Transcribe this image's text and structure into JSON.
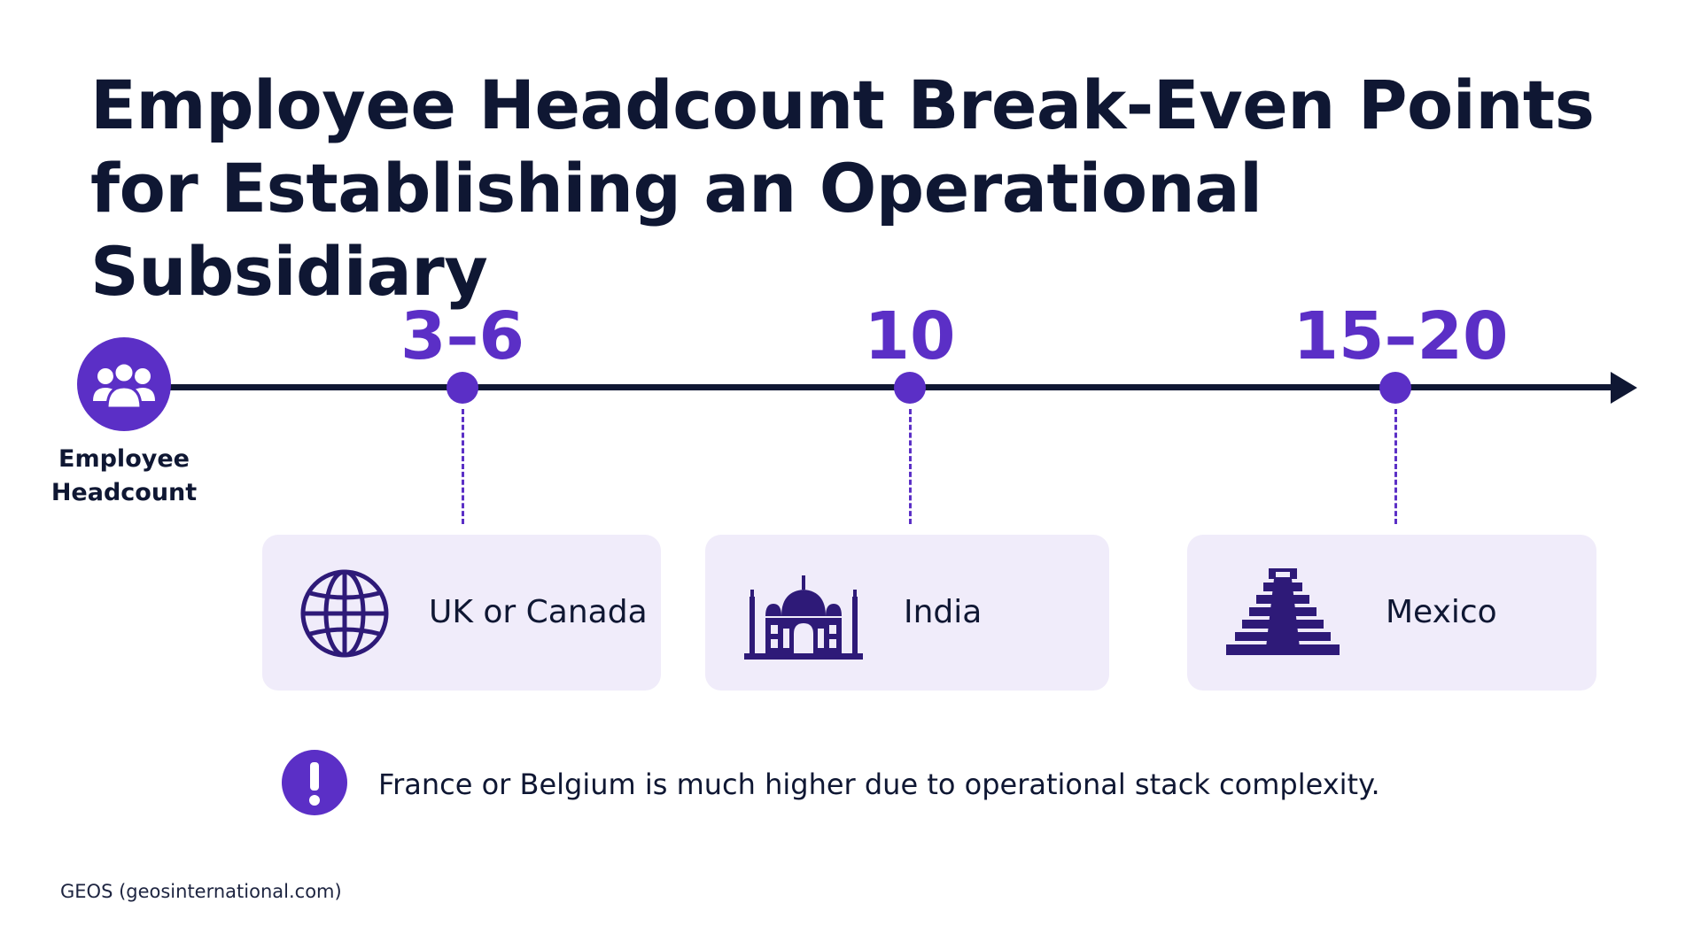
{
  "title": "Employee Headcount Break-Even Points for Establishing an Operational Subsidiary",
  "axis": {
    "label": "Employee Headcount",
    "icon": "people-group-icon"
  },
  "milestones": [
    {
      "value": "3–6",
      "country": "UK or Canada",
      "icon": "globe-icon"
    },
    {
      "value": "10",
      "country": "India",
      "icon": "taj-mahal-icon"
    },
    {
      "value": "15–20",
      "country": "Mexico",
      "icon": "pyramid-icon"
    }
  ],
  "note": {
    "icon": "exclamation-icon",
    "text": "France or Belgium is much higher due to operational stack complexity."
  },
  "source": "GEOS (geosinternational.com)",
  "colors": {
    "accent": "#5b2fc6",
    "text": "#0f1733",
    "card_background": "#f0ecfa"
  }
}
